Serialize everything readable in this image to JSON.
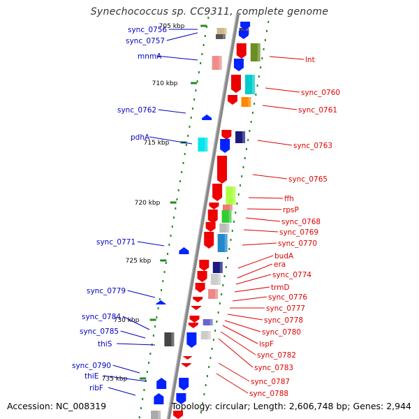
{
  "title": "Synechococcus sp. CC9311, complete genome",
  "accession": "Accession: NC_008319",
  "topology": "Topology: circular; Length: 2,606,748 bp; Genes: 2,944",
  "colors": {
    "left_labels": "#0000c0",
    "right_labels": "#dd0000",
    "tick_color": "#228822",
    "backbone": "#888888"
  },
  "scale_labels": [
    "705 kbp",
    "710 kbp",
    "715 kbp",
    "720 kbp",
    "725 kbp",
    "730 kbp",
    "735 kbp"
  ],
  "left_genes": [
    "sync_0756",
    "sync_0757",
    "mnmA",
    "sync_0762",
    "pdhA",
    "sync_0771",
    "sync_0779",
    "sync_0784",
    "sync_0785",
    "thiS",
    "sync_0790",
    "thiE",
    "ribF"
  ],
  "right_genes": [
    "lnt",
    "sync_0760",
    "sync_0761",
    "sync_0763",
    "sync_0765",
    "ffh",
    "rpsP",
    "sync_0768",
    "sync_0769",
    "sync_0770",
    "budA",
    "era",
    "sync_0774",
    "trmD",
    "sync_0776",
    "sync_0777",
    "sync_0778",
    "sync_0780",
    "ispF",
    "sync_0782",
    "sync_0783",
    "sync_0787",
    "sync_0788"
  ]
}
